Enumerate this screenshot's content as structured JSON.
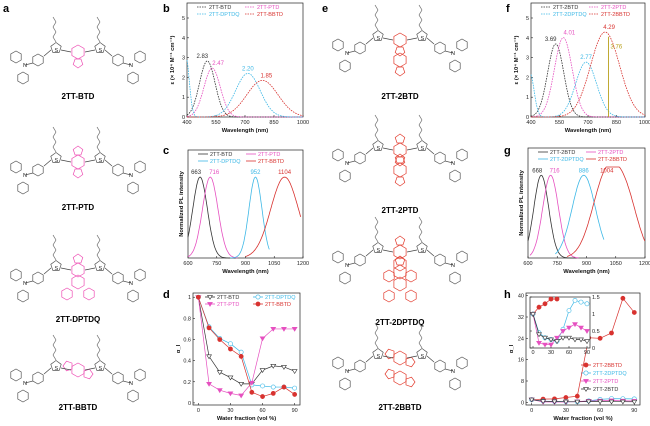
{
  "panels": {
    "a": "a",
    "b": "b",
    "c": "c",
    "d": "d",
    "e": "e",
    "f": "f",
    "g": "g",
    "h": "h"
  },
  "colors": {
    "black": "#333333",
    "pink": "#e650c0",
    "cyan": "#3db8e6",
    "red": "#d8322f",
    "olive": "#b9a21e",
    "core_pink": "#ee4fb4",
    "core_red": "#e23a2c"
  },
  "molecules": {
    "left": [
      {
        "name": "2TT-BTD",
        "core": "BTD"
      },
      {
        "name": "2TT-PTD",
        "core": "PTD"
      },
      {
        "name": "2TT-DPTDQ",
        "core": "DPTDQ"
      },
      {
        "name": "2TT-BBTD",
        "core": "BBTD"
      }
    ],
    "right": [
      {
        "name": "2TT-2BTD",
        "core": "BTD"
      },
      {
        "name": "2TT-2PTD",
        "core": "PTD"
      },
      {
        "name": "2TT-2DPTDQ",
        "core": "DPTDQ"
      },
      {
        "name": "2TT-2BBTD",
        "core": "BBTD"
      }
    ]
  },
  "chart_data": [
    {
      "panel": "b",
      "type": "line",
      "xlabel": "Wavelength (nm)",
      "ylabel": "ε (× 10⁴ M⁻¹ cm⁻¹)",
      "xlim": [
        400,
        1000
      ],
      "ylim": [
        0,
        5
      ],
      "xticks": [
        400,
        550,
        700,
        850,
        1000
      ],
      "yticks": [
        0,
        1,
        2,
        3,
        4,
        5
      ],
      "dashed": true,
      "legend": "top",
      "series": [
        {
          "name": "2TT-BTD",
          "color": "#333333",
          "peak_label": "2.83",
          "bands": [
            {
              "center": 505,
              "height": 2.83,
              "fwhm": 95
            }
          ]
        },
        {
          "name": "2TT-PTD",
          "color": "#e650c0",
          "peak_label": "2.47",
          "bands": [
            {
              "center": 530,
              "height": 2.47,
              "fwhm": 100
            }
          ]
        },
        {
          "name": "2TT-DPTDQ",
          "color": "#3db8e6",
          "peak_label": "2.20",
          "bands": [
            {
              "center": 395,
              "height": 3.0,
              "fwhm": 40
            },
            {
              "center": 715,
              "height": 2.2,
              "fwhm": 150
            }
          ]
        },
        {
          "name": "2TT-BBTD",
          "color": "#d8322f",
          "peak_label": "1.85",
          "bands": [
            {
              "center": 790,
              "height": 1.85,
              "fwhm": 190
            }
          ]
        }
      ]
    },
    {
      "panel": "c",
      "type": "line",
      "xlabel": "Wavelength (nm)",
      "ylabel": "Normalized PL intensity",
      "xlim": [
        600,
        1200
      ],
      "ylim": [
        0,
        1.1
      ],
      "xticks": [
        600,
        750,
        900,
        1050,
        1200
      ],
      "yticks": [],
      "dashed": false,
      "legend": "top",
      "series": [
        {
          "name": "2TT-BTD",
          "color": "#333333",
          "peak_label": "663",
          "range": [
            600,
            850
          ],
          "bands": [
            {
              "center": 663,
              "height": 1,
              "fwhm": 90
            }
          ]
        },
        {
          "name": "2TT-PTD",
          "color": "#e650c0",
          "peak_label": "716",
          "range": [
            600,
            860
          ],
          "bands": [
            {
              "center": 716,
              "height": 1,
              "fwhm": 95
            }
          ]
        },
        {
          "name": "2TT-DPTDQ",
          "color": "#3db8e6",
          "peak_label": "952",
          "range": [
            820,
            1025
          ],
          "bands": [
            {
              "center": 952,
              "height": 1,
              "fwhm": 80
            }
          ]
        },
        {
          "name": "2TT-BBTD",
          "color": "#d8322f",
          "peak_label": "1104",
          "range": [
            900,
            1190
          ],
          "bands": [
            {
              "center": 1104,
              "height": 1,
              "fwhm": 170
            }
          ]
        }
      ]
    },
    {
      "panel": "d",
      "type": "line",
      "xlabel": "Water fraction (vol %)",
      "ylabel": "α_I",
      "xlim": [
        -5,
        95
      ],
      "ylim": [
        -0.02,
        1.04
      ],
      "xticks": [
        0,
        30,
        60,
        90
      ],
      "yticks": [
        0.0,
        0.2,
        0.4,
        0.6,
        0.8,
        1.0
      ],
      "legend": "top",
      "x": [
        0,
        10,
        20,
        30,
        40,
        50,
        60,
        70,
        80,
        90
      ],
      "series": [
        {
          "name": "2TT-BTD",
          "color": "#333333",
          "marker": "triangle-down-open",
          "values": [
            1.0,
            0.44,
            0.29,
            0.24,
            0.18,
            0.18,
            0.31,
            0.35,
            0.34,
            0.3
          ]
        },
        {
          "name": "2TT-DPTDQ",
          "color": "#3db8e6",
          "marker": "circle-open",
          "values": [
            1.0,
            0.72,
            0.61,
            0.56,
            0.48,
            0.17,
            0.16,
            0.15,
            0.15,
            0.14
          ]
        },
        {
          "name": "2TT-PTD",
          "color": "#e650c0",
          "marker": "triangle-down",
          "values": [
            1.0,
            0.18,
            0.12,
            0.09,
            0.07,
            0.19,
            0.61,
            0.7,
            0.7,
            0.7
          ]
        },
        {
          "name": "2TT-BBTD",
          "color": "#d8322f",
          "marker": "circle",
          "values": [
            1.0,
            0.71,
            0.6,
            0.51,
            0.44,
            0.1,
            0.06,
            0.09,
            0.15,
            0.08
          ]
        }
      ]
    },
    {
      "panel": "f",
      "type": "line",
      "xlabel": "Wavelength (nm)",
      "ylabel": "ε (× 10⁴ M⁻¹ cm⁻¹)",
      "xlim": [
        400,
        1000
      ],
      "ylim": [
        0,
        5
      ],
      "xticks": [
        400,
        550,
        700,
        850,
        1000
      ],
      "yticks": [
        0,
        1,
        2,
        3,
        4,
        5
      ],
      "dashed": true,
      "legend": "top",
      "marker_line": {
        "x": 808,
        "label": "3.76",
        "color": "#b9a21e"
      },
      "series": [
        {
          "name": "2TT-2BTD",
          "color": "#333333",
          "peak_label": "3.69",
          "bands": [
            {
              "center": 530,
              "height": 3.69,
              "fwhm": 100
            }
          ]
        },
        {
          "name": "2TT-2PTD",
          "color": "#e650c0",
          "peak_label": "4.01",
          "bands": [
            {
              "center": 570,
              "height": 4.01,
              "fwhm": 110
            }
          ]
        },
        {
          "name": "2TT-2DPTDQ",
          "color": "#3db8e6",
          "peak_label": "2.77",
          "bands": [
            {
              "center": 395,
              "height": 2.2,
              "fwhm": 50
            },
            {
              "center": 690,
              "height": 2.77,
              "fwhm": 130
            }
          ]
        },
        {
          "name": "2TT-2BBTD",
          "color": "#d8322f",
          "peak_label": "4.29",
          "bands": [
            {
              "center": 790,
              "height": 4.29,
              "fwhm": 180
            }
          ]
        }
      ]
    },
    {
      "panel": "g",
      "type": "line",
      "xlabel": "Wavelength (nm)",
      "ylabel": "Normalized PL intensity",
      "xlim": [
        600,
        1200
      ],
      "ylim": [
        0,
        1.1
      ],
      "xticks": [
        600,
        750,
        900,
        1050,
        1200
      ],
      "yticks": [],
      "dashed": false,
      "legend": "top",
      "series": [
        {
          "name": "2TT-2BTD",
          "color": "#333333",
          "peak_label": "668",
          "range": [
            600,
            850
          ],
          "bands": [
            {
              "center": 668,
              "height": 1,
              "fwhm": 90
            }
          ]
        },
        {
          "name": "2TT-2PTD",
          "color": "#e650c0",
          "peak_label": "716",
          "range": [
            610,
            860
          ],
          "bands": [
            {
              "center": 716,
              "height": 1,
              "fwhm": 95
            }
          ]
        },
        {
          "name": "2TT-2DPTDQ",
          "color": "#3db8e6",
          "peak_label": "886",
          "range": [
            740,
            990
          ],
          "bands": [
            {
              "center": 886,
              "height": 1,
              "fwhm": 140
            }
          ]
        },
        {
          "name": "2TT-2BBTD",
          "color": "#d8322f",
          "peak_label": "1004",
          "range": [
            800,
            1200
          ],
          "bands": [
            {
              "center": 1004,
              "height": 1,
              "fwhm": 170
            },
            {
              "center": 1110,
              "height": 0.55,
              "fwhm": 140
            }
          ]
        }
      ]
    },
    {
      "panel": "h",
      "type": "line",
      "xlabel": "Water fraction (vol %)",
      "ylabel": "α_I",
      "xlim": [
        -5,
        95
      ],
      "ylim": [
        -1,
        41
      ],
      "xticks": [
        0,
        30,
        60,
        90
      ],
      "yticks": [
        0,
        8,
        16,
        24,
        32,
        40
      ],
      "legend": "right",
      "x": [
        0,
        10,
        20,
        30,
        40,
        50,
        60,
        70,
        80,
        90
      ],
      "series": [
        {
          "name": "2TT-2BBTD",
          "color": "#d8322f",
          "marker": "circle",
          "values": [
            1.0,
            1.2,
            1.3,
            1.8,
            2.3,
            24.2,
            24.0,
            26.0,
            39.0,
            33.7
          ]
        },
        {
          "name": "2TT-2DPTDQ",
          "color": "#3db8e6",
          "marker": "circle-open",
          "values": [
            1.0,
            0.45,
            0.3,
            0.25,
            0.2,
            0.55,
            1.1,
            1.4,
            1.35,
            1.3
          ]
        },
        {
          "name": "2TT-2PTD",
          "color": "#e650c0",
          "marker": "triangle-down",
          "values": [
            1.0,
            0.15,
            0.1,
            0.1,
            0.3,
            0.5,
            0.6,
            0.7,
            0.6,
            0.5
          ]
        },
        {
          "name": "2TT-2BTD",
          "color": "#333333",
          "marker": "triangle-down-open",
          "values": [
            1.0,
            0.4,
            0.3,
            0.25,
            0.2,
            0.3,
            0.3,
            0.25,
            0.25,
            0.2
          ]
        }
      ],
      "inset": {
        "xlim": [
          -5,
          95
        ],
        "ylim": [
          0,
          1.5
        ],
        "xticks": [
          0,
          30,
          60,
          90
        ],
        "yticks": [
          0.0,
          0.5,
          1.0,
          1.5
        ]
      }
    }
  ]
}
